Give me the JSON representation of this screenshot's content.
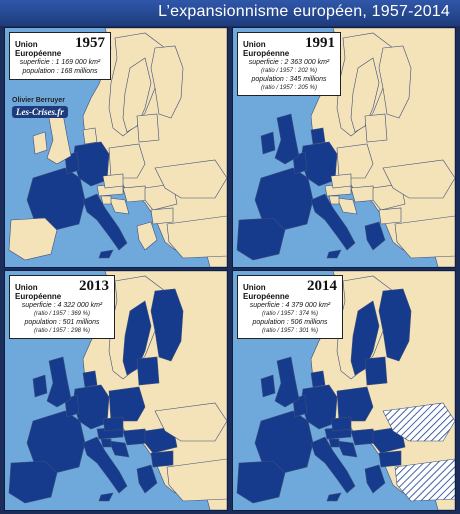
{
  "title": "L’expansionnisme européen, 1957-2014",
  "credit": {
    "author": "Olivier Berruyer",
    "site": "Les-Crises.fr"
  },
  "colors": {
    "sea": "#6fa9dc",
    "land": "#f4e2b8",
    "eu": "#163b8d",
    "border": "#3c4f7a",
    "frame": "#1c2d5a"
  },
  "panels": [
    {
      "union_label": "Union Européenne",
      "year": "1957",
      "surface": "superficie : 1 169 000 km²",
      "surface_ratio": "",
      "population": "population : 168 millions",
      "population_ratio": "",
      "members": [
        "fr",
        "de",
        "it",
        "benelux"
      ],
      "candidates": []
    },
    {
      "union_label": "Union Européenne",
      "year": "1991",
      "surface": "superficie : 2 363 000 km²",
      "surface_ratio": "(ratio / 1957 : 202 %)",
      "population": "population : 345 millions",
      "population_ratio": "(ratio / 1957 : 205 %)",
      "members": [
        "fr",
        "de",
        "it",
        "benelux",
        "iberia",
        "uk",
        "ie",
        "dk",
        "gr"
      ],
      "candidates": []
    },
    {
      "union_label": "Union Européenne",
      "year": "2013",
      "surface": "superficie : 4 322 000 km²",
      "surface_ratio": "(ratio / 1957 : 369 %)",
      "population": "population : 501 millions",
      "population_ratio": "(ratio / 1957 : 298 %)",
      "members": [
        "fr",
        "de",
        "it",
        "benelux",
        "iberia",
        "uk",
        "ie",
        "dk",
        "gr",
        "se",
        "fi",
        "at",
        "pl",
        "baltics",
        "cz",
        "hu",
        "ro",
        "bg",
        "hr",
        "si",
        "cy"
      ],
      "candidates": []
    },
    {
      "union_label": "Union Européenne",
      "year": "2014",
      "surface": "superficie : 4 379 000 km²",
      "surface_ratio": "(ratio / 1957 : 374 %)",
      "population": "population : 506 millions",
      "population_ratio": "(ratio / 1957 : 301 %)",
      "members": [
        "fr",
        "de",
        "it",
        "benelux",
        "iberia",
        "uk",
        "ie",
        "dk",
        "gr",
        "se",
        "fi",
        "at",
        "pl",
        "baltics",
        "cz",
        "hu",
        "ro",
        "bg",
        "hr",
        "si",
        "cy"
      ],
      "candidates": [
        "ua",
        "tr"
      ]
    }
  ]
}
